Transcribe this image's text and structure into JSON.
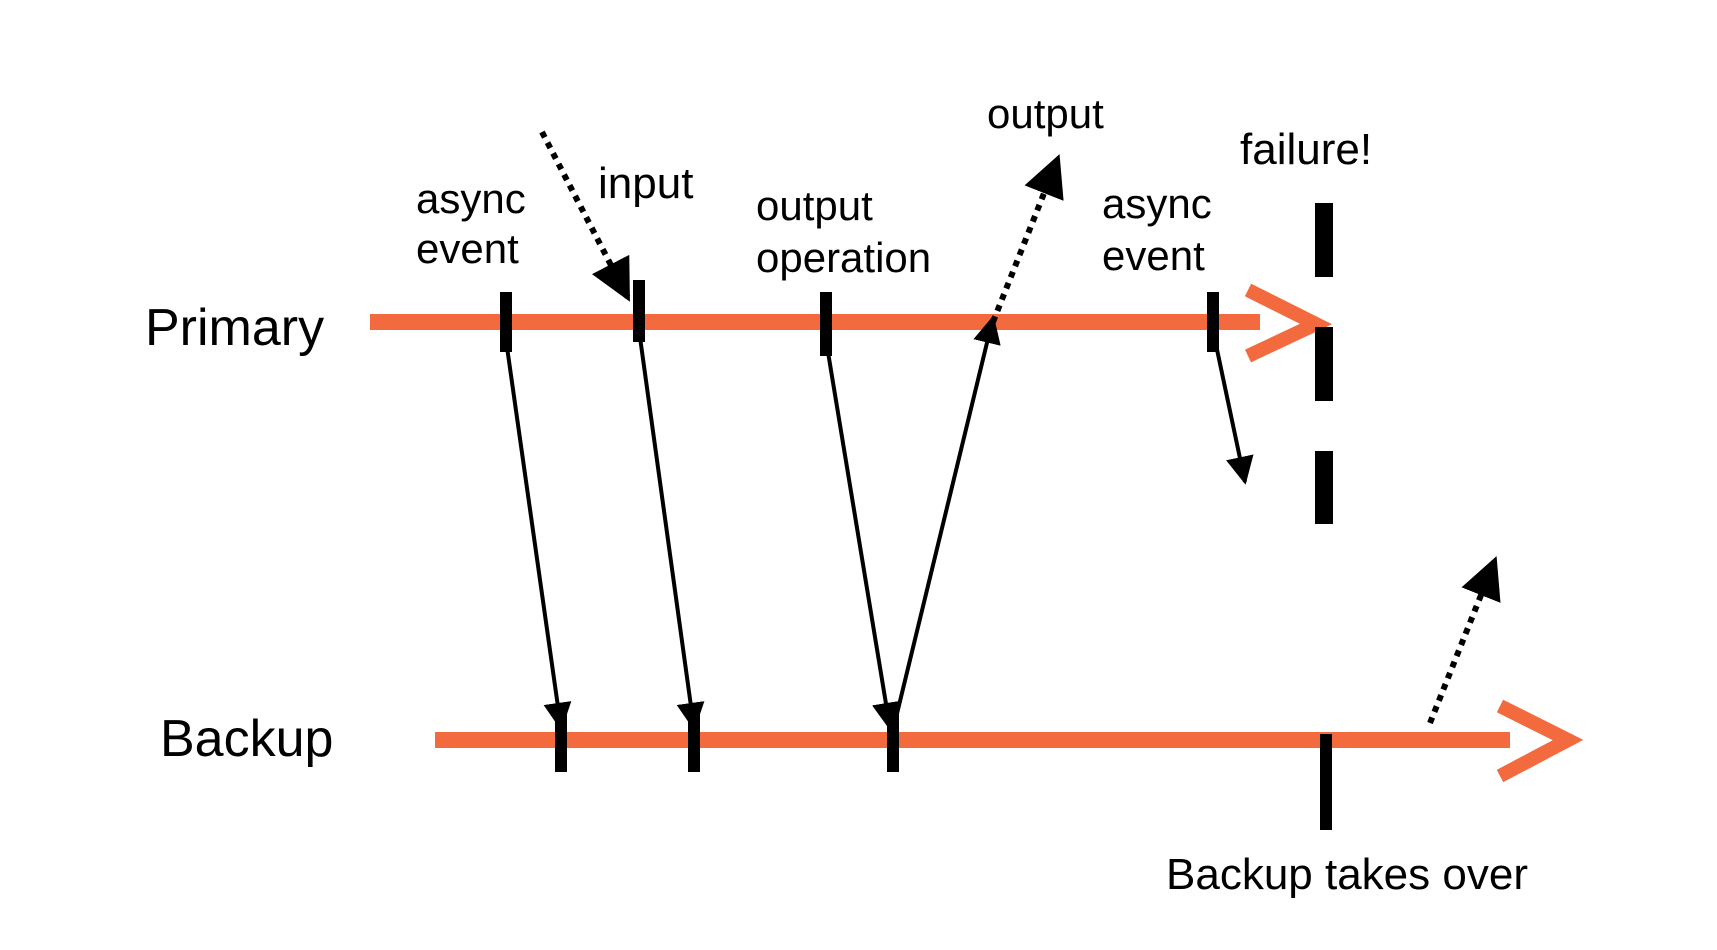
{
  "colors": {
    "timeline": "#f26a3d",
    "ink": "#000000",
    "background": "#ffffff"
  },
  "timelines": {
    "primary_label": "Primary",
    "backup_label": "Backup"
  },
  "labels": {
    "async_event_1": [
      "async",
      "event"
    ],
    "input": "input",
    "output_operation": [
      "output",
      "operation"
    ],
    "output": "output",
    "async_event_2": [
      "async",
      "event"
    ],
    "failure": "failure!",
    "backup_takes_over": "Backup takes over"
  }
}
